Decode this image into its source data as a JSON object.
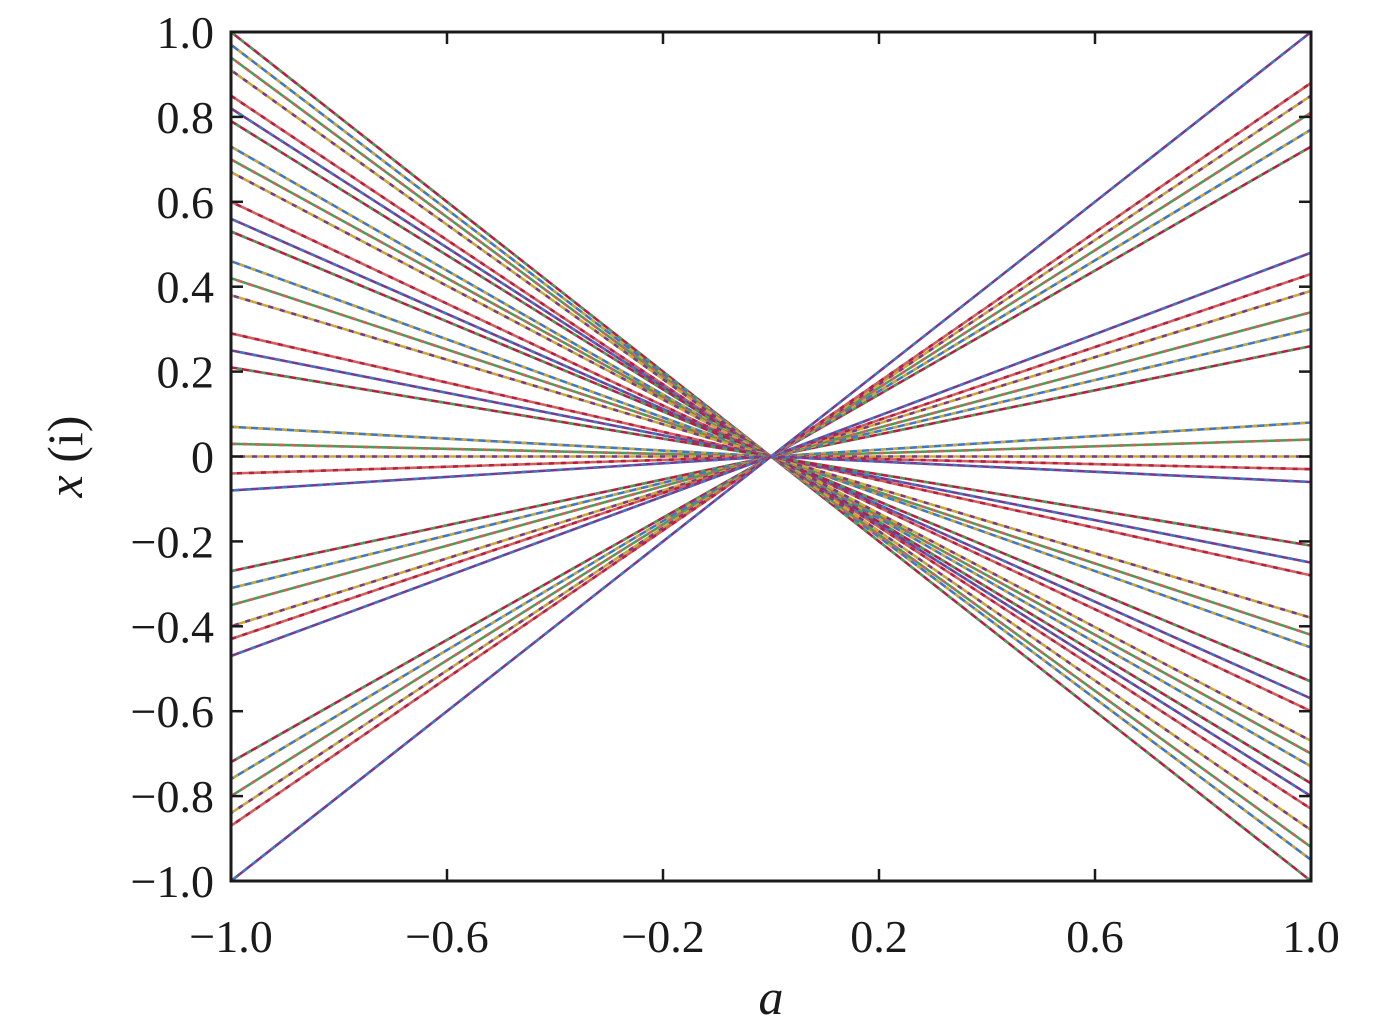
{
  "chart_data": {
    "type": "line",
    "xlabel": "a",
    "ylabel_var": "x",
    "ylabel_suffix": " (i)",
    "xlim": [
      -1.0,
      1.0
    ],
    "ylim": [
      -1.0,
      1.0
    ],
    "xticks": [
      -1.0,
      -0.6,
      -0.2,
      0.2,
      0.6,
      1.0
    ],
    "xtick_labels": [
      "−1.0",
      "−0.6",
      "−0.2",
      "0.2",
      "0.6",
      "1.0"
    ],
    "yticks": [
      1.0,
      0.8,
      0.6,
      0.4,
      0.2,
      0,
      -0.2,
      -0.4,
      -0.6,
      -0.8,
      -1.0
    ],
    "ytick_labels": [
      "1.0",
      "0.8",
      "0.6",
      "0.4",
      "0.2",
      "0",
      "−0.2",
      "−0.4",
      "−0.6",
      "−0.8",
      "−1.0"
    ],
    "grid": false,
    "legend": "none",
    "colors": [
      "#b81e45",
      "#3f78c4",
      "#4f9c57",
      "#c9a83a",
      "#d0605a",
      "#7a3a8c"
    ],
    "series": [
      {
        "x": [
          -1.0,
          0.0,
          1.0
        ],
        "values": [
          1.0,
          0.0,
          -1.0
        ]
      },
      {
        "x": [
          -1.0,
          0.0,
          1.0
        ],
        "values": [
          0.97,
          0.0,
          -0.95
        ]
      },
      {
        "x": [
          -1.0,
          0.0,
          1.0
        ],
        "values": [
          0.94,
          0.0,
          -0.92
        ]
      },
      {
        "x": [
          -1.0,
          0.0,
          1.0
        ],
        "values": [
          0.91,
          0.0,
          -0.88
        ]
      },
      {
        "x": [
          -1.0,
          0.0,
          1.0
        ],
        "values": [
          0.85,
          0.0,
          -0.83
        ]
      },
      {
        "x": [
          -1.0,
          0.0,
          1.0
        ],
        "values": [
          0.82,
          0.0,
          -0.8
        ]
      },
      {
        "x": [
          -1.0,
          0.0,
          1.0
        ],
        "values": [
          0.79,
          0.0,
          -0.77
        ]
      },
      {
        "x": [
          -1.0,
          0.0,
          1.0
        ],
        "values": [
          0.73,
          0.0,
          -0.73
        ]
      },
      {
        "x": [
          -1.0,
          0.0,
          1.0
        ],
        "values": [
          0.7,
          0.0,
          -0.7
        ]
      },
      {
        "x": [
          -1.0,
          0.0,
          1.0
        ],
        "values": [
          0.67,
          0.0,
          -0.67
        ]
      },
      {
        "x": [
          -1.0,
          0.0,
          1.0
        ],
        "values": [
          0.6,
          0.0,
          -0.6
        ]
      },
      {
        "x": [
          -1.0,
          0.0,
          1.0
        ],
        "values": [
          0.56,
          0.0,
          -0.57
        ]
      },
      {
        "x": [
          -1.0,
          0.0,
          1.0
        ],
        "values": [
          0.53,
          0.0,
          -0.53
        ]
      },
      {
        "x": [
          -1.0,
          0.0,
          1.0
        ],
        "values": [
          0.46,
          0.0,
          -0.45
        ]
      },
      {
        "x": [
          -1.0,
          0.0,
          1.0
        ],
        "values": [
          0.42,
          0.0,
          -0.42
        ]
      },
      {
        "x": [
          -1.0,
          0.0,
          1.0
        ],
        "values": [
          0.38,
          0.0,
          -0.38
        ]
      },
      {
        "x": [
          -1.0,
          0.0,
          1.0
        ],
        "values": [
          0.29,
          0.0,
          -0.28
        ]
      },
      {
        "x": [
          -1.0,
          0.0,
          1.0
        ],
        "values": [
          0.25,
          0.0,
          -0.25
        ]
      },
      {
        "x": [
          -1.0,
          0.0,
          1.0
        ],
        "values": [
          0.21,
          0.0,
          -0.21
        ]
      },
      {
        "x": [
          -1.0,
          0.0,
          1.0
        ],
        "values": [
          0.07,
          0.0,
          0.08
        ]
      },
      {
        "x": [
          -1.0,
          0.0,
          1.0
        ],
        "values": [
          0.03,
          0.0,
          0.04
        ]
      },
      {
        "x": [
          -1.0,
          0.0,
          1.0
        ],
        "values": [
          0.0,
          0.0,
          0.0
        ]
      },
      {
        "x": [
          -1.0,
          0.0,
          1.0
        ],
        "values": [
          -0.04,
          0.0,
          -0.03
        ]
      },
      {
        "x": [
          -1.0,
          0.0,
          1.0
        ],
        "values": [
          -0.08,
          0.0,
          -0.06
        ]
      },
      {
        "x": [
          -1.0,
          0.0,
          1.0
        ],
        "values": [
          -0.27,
          0.0,
          0.26
        ]
      },
      {
        "x": [
          -1.0,
          0.0,
          1.0
        ],
        "values": [
          -0.31,
          0.0,
          0.3
        ]
      },
      {
        "x": [
          -1.0,
          0.0,
          1.0
        ],
        "values": [
          -0.35,
          0.0,
          0.34
        ]
      },
      {
        "x": [
          -1.0,
          0.0,
          1.0
        ],
        "values": [
          -0.4,
          0.0,
          0.39
        ]
      },
      {
        "x": [
          -1.0,
          0.0,
          1.0
        ],
        "values": [
          -0.43,
          0.0,
          0.43
        ]
      },
      {
        "x": [
          -1.0,
          0.0,
          1.0
        ],
        "values": [
          -0.47,
          0.0,
          0.48
        ]
      },
      {
        "x": [
          -1.0,
          0.0,
          1.0
        ],
        "values": [
          -0.72,
          0.0,
          0.73
        ]
      },
      {
        "x": [
          -1.0,
          0.0,
          1.0
        ],
        "values": [
          -0.76,
          0.0,
          0.77
        ]
      },
      {
        "x": [
          -1.0,
          0.0,
          1.0
        ],
        "values": [
          -0.8,
          0.0,
          0.81
        ]
      },
      {
        "x": [
          -1.0,
          0.0,
          1.0
        ],
        "values": [
          -0.84,
          0.0,
          0.85
        ]
      },
      {
        "x": [
          -1.0,
          0.0,
          1.0
        ],
        "values": [
          -0.87,
          0.0,
          0.88
        ]
      },
      {
        "x": [
          -1.0,
          0.0,
          1.0
        ],
        "values": [
          -1.0,
          0.0,
          1.0
        ]
      }
    ]
  }
}
